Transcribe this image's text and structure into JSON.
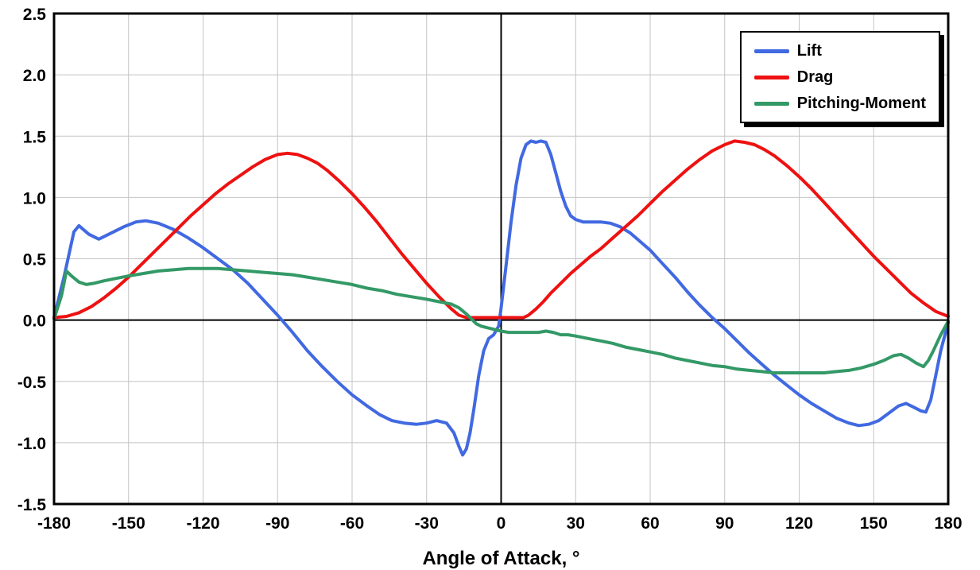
{
  "chart_data": {
    "type": "line",
    "title": "",
    "xlabel": "Angle of Attack, °",
    "ylabel": "",
    "xlim": [
      -180,
      180
    ],
    "ylim": [
      -1.5,
      2.5
    ],
    "xticks": [
      -180,
      -150,
      -120,
      -90,
      -60,
      -30,
      0,
      30,
      60,
      90,
      120,
      150,
      180
    ],
    "yticks": [
      2.5,
      2.0,
      1.5,
      1.0,
      0.5,
      0.0,
      -0.5,
      -1.0,
      -1.5
    ],
    "grid": true,
    "legend_position": "top-right",
    "colors": {
      "grid": "#c4c4c4",
      "axis": "#000000",
      "border": "#000000"
    },
    "series": [
      {
        "name": "Lift",
        "color": "#4169E1",
        "points": [
          [
            -180,
            0.02
          ],
          [
            -176,
            0.35
          ],
          [
            -172,
            0.72
          ],
          [
            -170,
            0.77
          ],
          [
            -166,
            0.7
          ],
          [
            -162,
            0.66
          ],
          [
            -158,
            0.7
          ],
          [
            -152,
            0.76
          ],
          [
            -147,
            0.8
          ],
          [
            -143,
            0.81
          ],
          [
            -138,
            0.79
          ],
          [
            -132,
            0.74
          ],
          [
            -126,
            0.67
          ],
          [
            -120,
            0.59
          ],
          [
            -114,
            0.5
          ],
          [
            -108,
            0.41
          ],
          [
            -102,
            0.3
          ],
          [
            -96,
            0.17
          ],
          [
            -90,
            0.04
          ],
          [
            -84,
            -0.1
          ],
          [
            -78,
            -0.25
          ],
          [
            -72,
            -0.38
          ],
          [
            -66,
            -0.5
          ],
          [
            -60,
            -0.61
          ],
          [
            -54,
            -0.7
          ],
          [
            -49,
            -0.77
          ],
          [
            -44,
            -0.82
          ],
          [
            -39,
            -0.84
          ],
          [
            -34,
            -0.85
          ],
          [
            -30,
            -0.84
          ],
          [
            -26,
            -0.82
          ],
          [
            -22,
            -0.84
          ],
          [
            -19,
            -0.92
          ],
          [
            -17,
            -1.03
          ],
          [
            -15.5,
            -1.1
          ],
          [
            -14,
            -1.05
          ],
          [
            -12.5,
            -0.92
          ],
          [
            -11,
            -0.73
          ],
          [
            -9,
            -0.45
          ],
          [
            -7,
            -0.25
          ],
          [
            -5,
            -0.15
          ],
          [
            -3,
            -0.12
          ],
          [
            -1,
            -0.05
          ],
          [
            0,
            0.1
          ],
          [
            2,
            0.45
          ],
          [
            4,
            0.8
          ],
          [
            6,
            1.1
          ],
          [
            8,
            1.32
          ],
          [
            10,
            1.43
          ],
          [
            12,
            1.46
          ],
          [
            14,
            1.45
          ],
          [
            16,
            1.46
          ],
          [
            18,
            1.45
          ],
          [
            20,
            1.35
          ],
          [
            22,
            1.2
          ],
          [
            24,
            1.05
          ],
          [
            26,
            0.93
          ],
          [
            28,
            0.85
          ],
          [
            30,
            0.82
          ],
          [
            33,
            0.8
          ],
          [
            36,
            0.8
          ],
          [
            40,
            0.8
          ],
          [
            44,
            0.79
          ],
          [
            48,
            0.76
          ],
          [
            52,
            0.71
          ],
          [
            56,
            0.64
          ],
          [
            60,
            0.57
          ],
          [
            65,
            0.46
          ],
          [
            70,
            0.35
          ],
          [
            75,
            0.23
          ],
          [
            80,
            0.12
          ],
          [
            85,
            0.02
          ],
          [
            90,
            -0.07
          ],
          [
            95,
            -0.17
          ],
          [
            100,
            -0.27
          ],
          [
            105,
            -0.36
          ],
          [
            110,
            -0.45
          ],
          [
            115,
            -0.53
          ],
          [
            120,
            -0.61
          ],
          [
            125,
            -0.68
          ],
          [
            130,
            -0.74
          ],
          [
            135,
            -0.8
          ],
          [
            140,
            -0.84
          ],
          [
            144,
            -0.86
          ],
          [
            148,
            -0.85
          ],
          [
            152,
            -0.82
          ],
          [
            156,
            -0.76
          ],
          [
            160,
            -0.7
          ],
          [
            163,
            -0.68
          ],
          [
            166,
            -0.71
          ],
          [
            169,
            -0.74
          ],
          [
            171,
            -0.75
          ],
          [
            173,
            -0.65
          ],
          [
            175,
            -0.45
          ],
          [
            177,
            -0.25
          ],
          [
            180,
            -0.02
          ]
        ]
      },
      {
        "name": "Drag",
        "color": "#EE1111",
        "points": [
          [
            -180,
            0.02
          ],
          [
            -175,
            0.03
          ],
          [
            -170,
            0.06
          ],
          [
            -165,
            0.11
          ],
          [
            -160,
            0.18
          ],
          [
            -155,
            0.26
          ],
          [
            -150,
            0.35
          ],
          [
            -145,
            0.45
          ],
          [
            -140,
            0.55
          ],
          [
            -135,
            0.65
          ],
          [
            -130,
            0.75
          ],
          [
            -125,
            0.85
          ],
          [
            -120,
            0.94
          ],
          [
            -115,
            1.03
          ],
          [
            -110,
            1.11
          ],
          [
            -105,
            1.18
          ],
          [
            -100,
            1.25
          ],
          [
            -95,
            1.31
          ],
          [
            -90,
            1.35
          ],
          [
            -86,
            1.36
          ],
          [
            -82,
            1.35
          ],
          [
            -78,
            1.32
          ],
          [
            -74,
            1.28
          ],
          [
            -70,
            1.22
          ],
          [
            -65,
            1.13
          ],
          [
            -60,
            1.03
          ],
          [
            -55,
            0.92
          ],
          [
            -50,
            0.8
          ],
          [
            -45,
            0.67
          ],
          [
            -40,
            0.54
          ],
          [
            -35,
            0.42
          ],
          [
            -30,
            0.3
          ],
          [
            -25,
            0.19
          ],
          [
            -20,
            0.09
          ],
          [
            -17,
            0.04
          ],
          [
            -14,
            0.02
          ],
          [
            -10,
            0.02
          ],
          [
            -5,
            0.02
          ],
          [
            0,
            0.02
          ],
          [
            5,
            0.02
          ],
          [
            9,
            0.02
          ],
          [
            11,
            0.04
          ],
          [
            14,
            0.09
          ],
          [
            17,
            0.15
          ],
          [
            20,
            0.22
          ],
          [
            24,
            0.3
          ],
          [
            28,
            0.38
          ],
          [
            32,
            0.45
          ],
          [
            36,
            0.52
          ],
          [
            40,
            0.58
          ],
          [
            45,
            0.67
          ],
          [
            50,
            0.76
          ],
          [
            55,
            0.85
          ],
          [
            60,
            0.95
          ],
          [
            65,
            1.05
          ],
          [
            70,
            1.14
          ],
          [
            75,
            1.23
          ],
          [
            80,
            1.31
          ],
          [
            85,
            1.38
          ],
          [
            90,
            1.43
          ],
          [
            94,
            1.46
          ],
          [
            98,
            1.45
          ],
          [
            102,
            1.43
          ],
          [
            106,
            1.39
          ],
          [
            110,
            1.34
          ],
          [
            115,
            1.26
          ],
          [
            120,
            1.17
          ],
          [
            125,
            1.07
          ],
          [
            130,
            0.96
          ],
          [
            135,
            0.85
          ],
          [
            140,
            0.74
          ],
          [
            145,
            0.63
          ],
          [
            150,
            0.52
          ],
          [
            155,
            0.42
          ],
          [
            160,
            0.32
          ],
          [
            165,
            0.22
          ],
          [
            170,
            0.14
          ],
          [
            175,
            0.07
          ],
          [
            180,
            0.03
          ]
        ]
      },
      {
        "name": "Pitching-Moment",
        "color": "#339966",
        "points": [
          [
            -180,
            0.01
          ],
          [
            -177,
            0.2
          ],
          [
            -175,
            0.4
          ],
          [
            -173,
            0.36
          ],
          [
            -170,
            0.31
          ],
          [
            -167,
            0.29
          ],
          [
            -164,
            0.3
          ],
          [
            -160,
            0.32
          ],
          [
            -155,
            0.34
          ],
          [
            -150,
            0.36
          ],
          [
            -144,
            0.38
          ],
          [
            -138,
            0.4
          ],
          [
            -132,
            0.41
          ],
          [
            -126,
            0.42
          ],
          [
            -120,
            0.42
          ],
          [
            -114,
            0.42
          ],
          [
            -108,
            0.41
          ],
          [
            -102,
            0.4
          ],
          [
            -96,
            0.39
          ],
          [
            -90,
            0.38
          ],
          [
            -84,
            0.37
          ],
          [
            -78,
            0.35
          ],
          [
            -72,
            0.33
          ],
          [
            -66,
            0.31
          ],
          [
            -60,
            0.29
          ],
          [
            -54,
            0.26
          ],
          [
            -48,
            0.24
          ],
          [
            -42,
            0.21
          ],
          [
            -36,
            0.19
          ],
          [
            -30,
            0.17
          ],
          [
            -25,
            0.15
          ],
          [
            -20,
            0.13
          ],
          [
            -17,
            0.1
          ],
          [
            -14,
            0.05
          ],
          [
            -12,
            0.01
          ],
          [
            -10,
            -0.03
          ],
          [
            -8,
            -0.05
          ],
          [
            -6,
            -0.06
          ],
          [
            -4,
            -0.07
          ],
          [
            -2,
            -0.08
          ],
          [
            0,
            -0.09
          ],
          [
            3,
            -0.1
          ],
          [
            6,
            -0.1
          ],
          [
            9,
            -0.1
          ],
          [
            12,
            -0.1
          ],
          [
            15,
            -0.1
          ],
          [
            18,
            -0.09
          ],
          [
            21,
            -0.1
          ],
          [
            24,
            -0.12
          ],
          [
            27,
            -0.12
          ],
          [
            30,
            -0.13
          ],
          [
            35,
            -0.15
          ],
          [
            40,
            -0.17
          ],
          [
            45,
            -0.19
          ],
          [
            50,
            -0.22
          ],
          [
            55,
            -0.24
          ],
          [
            60,
            -0.26
          ],
          [
            65,
            -0.28
          ],
          [
            70,
            -0.31
          ],
          [
            75,
            -0.33
          ],
          [
            80,
            -0.35
          ],
          [
            85,
            -0.37
          ],
          [
            90,
            -0.38
          ],
          [
            95,
            -0.4
          ],
          [
            100,
            -0.41
          ],
          [
            105,
            -0.42
          ],
          [
            110,
            -0.43
          ],
          [
            115,
            -0.43
          ],
          [
            120,
            -0.43
          ],
          [
            125,
            -0.43
          ],
          [
            130,
            -0.43
          ],
          [
            135,
            -0.42
          ],
          [
            140,
            -0.41
          ],
          [
            145,
            -0.39
          ],
          [
            150,
            -0.36
          ],
          [
            154,
            -0.33
          ],
          [
            158,
            -0.29
          ],
          [
            161,
            -0.28
          ],
          [
            164,
            -0.31
          ],
          [
            167,
            -0.35
          ],
          [
            170,
            -0.38
          ],
          [
            172,
            -0.33
          ],
          [
            174,
            -0.25
          ],
          [
            177,
            -0.12
          ],
          [
            180,
            -0.01
          ]
        ]
      }
    ]
  }
}
